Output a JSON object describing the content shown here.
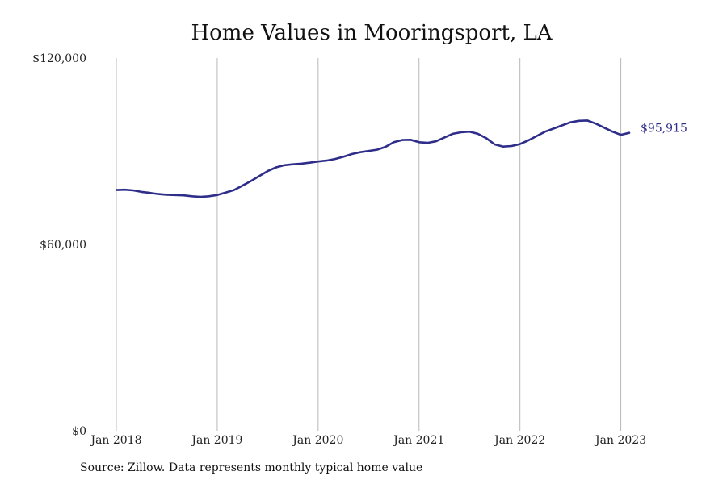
{
  "chart_data": {
    "type": "line",
    "title": "Home Values in Mooringsport, LA",
    "xlabel": "",
    "ylabel": "",
    "x_ticks": [
      "Jan 2018",
      "Jan 2019",
      "Jan 2020",
      "Jan 2021",
      "Jan 2022",
      "Jan 2023"
    ],
    "y_ticks": [
      "$0",
      "$60,000",
      "$120,000"
    ],
    "ylim": [
      0,
      120000
    ],
    "xlim": [
      "2018-01",
      "2023-02"
    ],
    "grid": "vertical",
    "line_color": "#2e2e8a",
    "end_label": "$95,915",
    "series": [
      {
        "x": [
          "2018-01",
          "2018-02",
          "2018-03",
          "2018-04",
          "2018-05",
          "2018-06",
          "2018-07",
          "2018-08",
          "2018-09",
          "2018-10",
          "2018-11",
          "2018-12",
          "2019-01",
          "2019-02",
          "2019-03",
          "2019-04",
          "2019-05",
          "2019-06",
          "2019-07",
          "2019-08",
          "2019-09",
          "2019-10",
          "2019-11",
          "2019-12",
          "2020-01",
          "2020-02",
          "2020-03",
          "2020-04",
          "2020-05",
          "2020-06",
          "2020-07",
          "2020-08",
          "2020-09",
          "2020-10",
          "2020-11",
          "2020-12",
          "2021-01",
          "2021-02",
          "2021-03",
          "2021-04",
          "2021-05",
          "2021-06",
          "2021-07",
          "2021-08",
          "2021-09",
          "2021-10",
          "2021-11",
          "2021-12",
          "2022-01",
          "2022-02",
          "2022-03",
          "2022-04",
          "2022-05",
          "2022-06",
          "2022-07",
          "2022-08",
          "2022-09",
          "2022-10",
          "2022-11",
          "2022-12",
          "2023-01",
          "2023-02"
        ],
        "values": [
          77500,
          77600,
          77400,
          76900,
          76600,
          76200,
          76000,
          75900,
          75800,
          75500,
          75300,
          75500,
          75900,
          76700,
          77500,
          78900,
          80400,
          82000,
          83600,
          84800,
          85500,
          85800,
          86000,
          86300,
          86700,
          87000,
          87500,
          88200,
          89100,
          89700,
          90100,
          90500,
          91400,
          92900,
          93600,
          93700,
          92900,
          92700,
          93200,
          94400,
          95600,
          96100,
          96300,
          95600,
          94200,
          92200,
          91500,
          91700,
          92300,
          93500,
          94900,
          96300,
          97300,
          98300,
          99300,
          99800,
          99900,
          98900,
          97600,
          96300,
          95300,
          95915
        ]
      }
    ]
  },
  "source": "Source: Zillow. Data represents monthly typical home value"
}
